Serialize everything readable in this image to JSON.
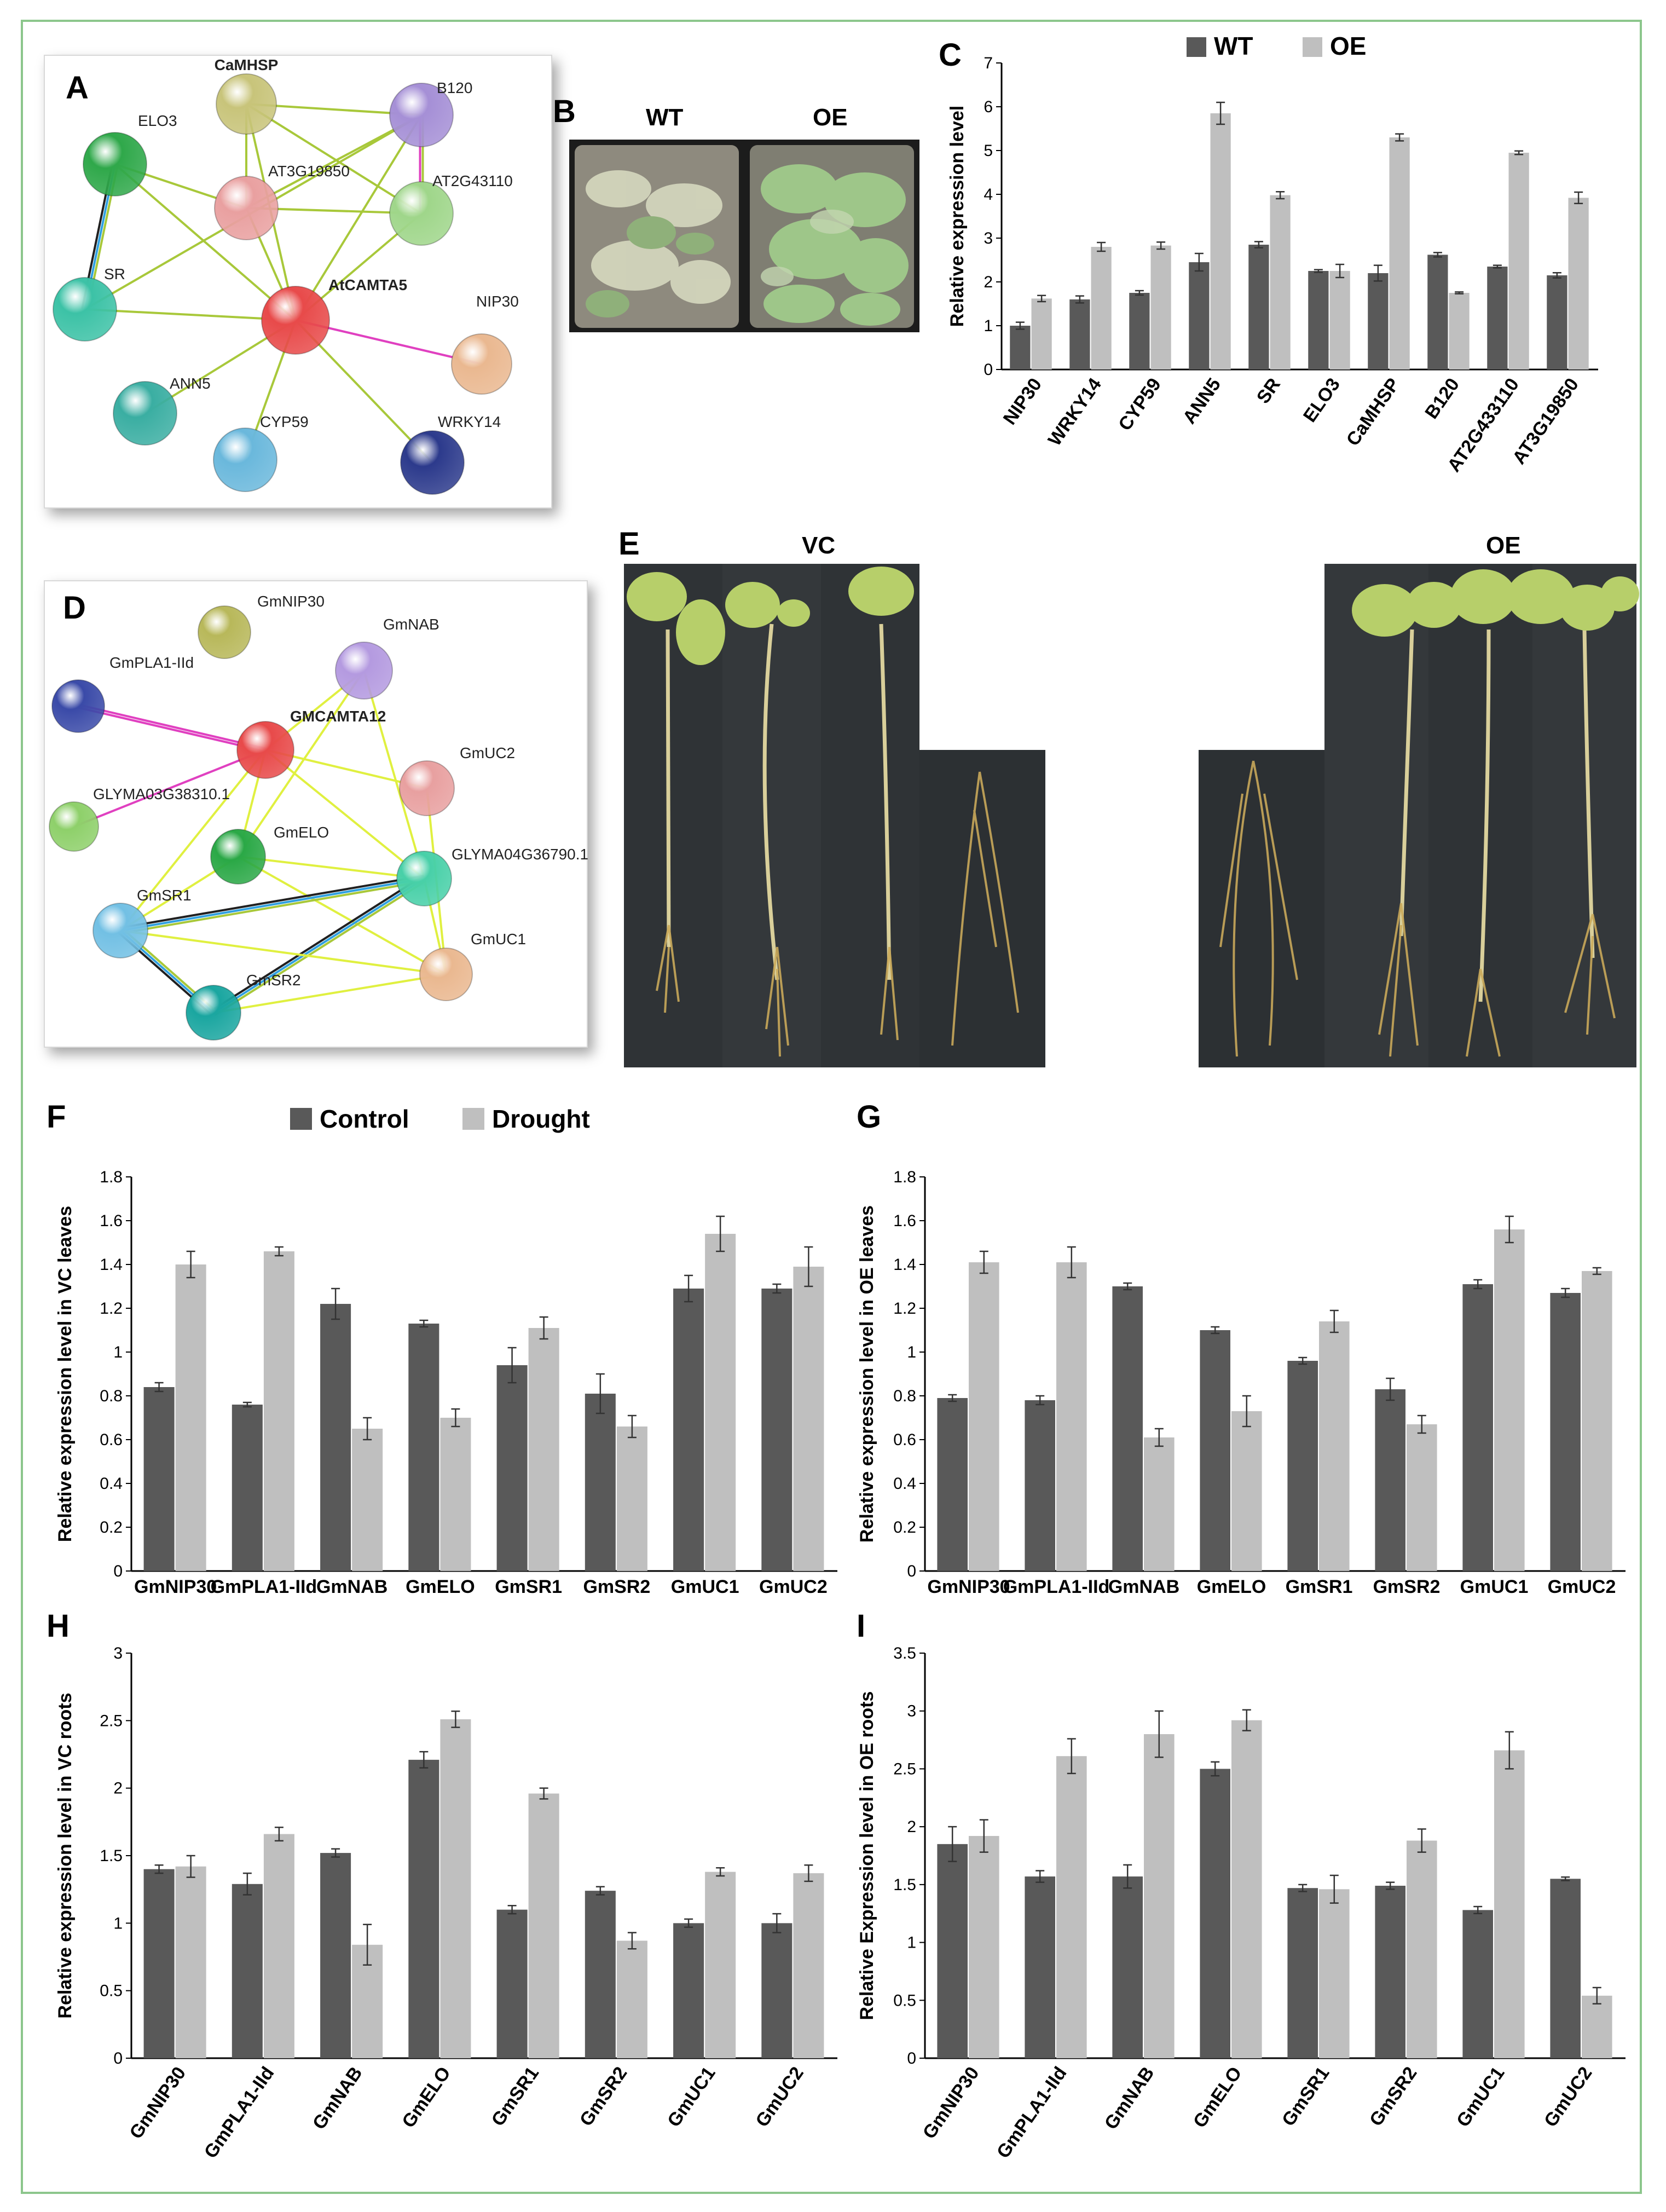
{
  "colors": {
    "dark_bar": "#595959",
    "light_bar": "#bfbfbf",
    "frame": "#8cc68c"
  },
  "panel_labels": {
    "a": "A",
    "b": "B",
    "c": "C",
    "d": "D",
    "e": "E",
    "f": "F",
    "g": "G",
    "h": "H",
    "i": "I"
  },
  "network_a": {
    "nodes": [
      {
        "label": "CaMHSP",
        "color": "#c8c47a",
        "bold": true
      },
      {
        "label": "B120",
        "color": "#a58fd6",
        "bold": false
      },
      {
        "label": "ELO3",
        "color": "#2fa84a",
        "bold": false
      },
      {
        "label": "AT3G19850",
        "color": "#e9a0a0",
        "bold": false
      },
      {
        "label": "AT2G43110",
        "color": "#9fd68a",
        "bold": false
      },
      {
        "label": "SR",
        "color": "#3cc2a6",
        "bold": false
      },
      {
        "label": "AtCAMTA5",
        "color": "#e84a4a",
        "bold": true
      },
      {
        "label": "NIP30",
        "color": "#eab890",
        "bold": false
      },
      {
        "label": "ANN5",
        "color": "#3aaea2",
        "bold": false
      },
      {
        "label": "CYP59",
        "color": "#6ab8dc",
        "bold": false
      },
      {
        "label": "WRKY14",
        "color": "#2c3a8c",
        "bold": false
      }
    ]
  },
  "network_d": {
    "nodes": [
      {
        "label": "GmNIP30",
        "color": "#b8b85a",
        "bold": false
      },
      {
        "label": "GmNAB",
        "color": "#b49ae0",
        "bold": false
      },
      {
        "label": "GmPLA1-IId",
        "color": "#3a4aa8",
        "bold": false
      },
      {
        "label": "GMCAMTA12",
        "color": "#e84a4a",
        "bold": true
      },
      {
        "label": "GmUC2",
        "color": "#e8a0a0",
        "bold": false
      },
      {
        "label": "GLYMA03G38310.1",
        "color": "#8ed06a",
        "bold": false
      },
      {
        "label": "GmELO",
        "color": "#2aa846",
        "bold": false
      },
      {
        "label": "GLYMA04G36790.1",
        "color": "#48d0a8",
        "bold": false
      },
      {
        "label": "GmSR1",
        "color": "#72c0e4",
        "bold": false
      },
      {
        "label": "GmUC1",
        "color": "#eab890",
        "bold": false
      },
      {
        "label": "GmSR2",
        "color": "#1aa6a0",
        "bold": false
      }
    ]
  },
  "photo_b": {
    "left_label": "WT",
    "right_label": "OE"
  },
  "photo_e": {
    "left_label": "VC",
    "right_label": "OE"
  },
  "legend_gm": {
    "control": "Control",
    "drought": "Drought"
  },
  "chart_data": [
    {
      "id": "C",
      "type": "bar",
      "title": "",
      "ylabel": "Relative expression level",
      "categories": [
        "NIP30",
        "WRKY14",
        "CYP59",
        "ANN5",
        "SR",
        "ELO3",
        "CaMHSP",
        "B120",
        "AT2G433110",
        "AT3G19850"
      ],
      "series": [
        {
          "name": "WT",
          "values": [
            1.0,
            1.6,
            1.75,
            2.45,
            2.85,
            2.25,
            2.2,
            2.62,
            2.35,
            2.15
          ],
          "errors": [
            0.08,
            0.08,
            0.05,
            0.2,
            0.07,
            0.03,
            0.18,
            0.05,
            0.03,
            0.06
          ]
        },
        {
          "name": "OE",
          "values": [
            1.62,
            2.8,
            2.83,
            5.85,
            3.98,
            2.25,
            5.3,
            1.75,
            4.95,
            3.92
          ],
          "errors": [
            0.07,
            0.1,
            0.08,
            0.25,
            0.08,
            0.15,
            0.08,
            0.02,
            0.04,
            0.13
          ]
        }
      ],
      "ylim": [
        0,
        7
      ],
      "yticks": [
        0,
        1,
        2,
        3,
        4,
        5,
        6,
        7
      ],
      "ytick_labels": [
        "0",
        "1",
        "2",
        "3",
        "4",
        "5",
        "6",
        "7"
      ],
      "legend": "top"
    },
    {
      "id": "F",
      "type": "bar",
      "ylabel": "Relative expression level in VC leaves",
      "categories": [
        "GmNIP30",
        "GmPLA1-IId",
        "GmNAB",
        "GmELO",
        "GmSR1",
        "GmSR2",
        "GmUC1",
        "GmUC2"
      ],
      "series": [
        {
          "name": "Control",
          "values": [
            0.84,
            0.76,
            1.22,
            1.13,
            0.94,
            0.81,
            1.29,
            1.29
          ],
          "errors": [
            0.02,
            0.01,
            0.07,
            0.015,
            0.08,
            0.09,
            0.06,
            0.02
          ]
        },
        {
          "name": "Drought",
          "values": [
            1.4,
            1.46,
            0.65,
            0.7,
            1.11,
            0.66,
            1.54,
            1.39
          ],
          "errors": [
            0.06,
            0.02,
            0.05,
            0.04,
            0.05,
            0.05,
            0.08,
            0.09
          ]
        }
      ],
      "ylim": [
        0,
        1.8
      ],
      "yticks": [
        0,
        0.2,
        0.4,
        0.6,
        0.8,
        1.0,
        1.2,
        1.4,
        1.6,
        1.8
      ],
      "ytick_labels": [
        "0",
        "0.2",
        "0.4",
        "0.6",
        "0.8",
        "1",
        "1.2",
        "1.4",
        "1.6",
        "1.8"
      ],
      "legend": "top"
    },
    {
      "id": "G",
      "type": "bar",
      "ylabel": "Relative expression level in OE leaves",
      "categories": [
        "GmNIP30",
        "GmPLA1-IId",
        "GmNAB",
        "GmELO",
        "GmSR1",
        "GmSR2",
        "GmUC1",
        "GmUC2"
      ],
      "series": [
        {
          "name": "Control",
          "values": [
            0.79,
            0.78,
            1.3,
            1.1,
            0.96,
            0.83,
            1.31,
            1.27
          ],
          "errors": [
            0.015,
            0.02,
            0.015,
            0.015,
            0.015,
            0.05,
            0.02,
            0.02
          ]
        },
        {
          "name": "Drought",
          "values": [
            1.41,
            1.41,
            0.61,
            0.73,
            1.14,
            0.67,
            1.56,
            1.37
          ],
          "errors": [
            0.05,
            0.07,
            0.04,
            0.07,
            0.05,
            0.04,
            0.06,
            0.015
          ]
        }
      ],
      "ylim": [
        0,
        1.8
      ],
      "yticks": [
        0,
        0.2,
        0.4,
        0.6,
        0.8,
        1.0,
        1.2,
        1.4,
        1.6,
        1.8
      ],
      "ytick_labels": [
        "0",
        "0.2",
        "0.4",
        "0.6",
        "0.8",
        "1",
        "1.2",
        "1.4",
        "1.6",
        "1.8"
      ],
      "legend": "none"
    },
    {
      "id": "H",
      "type": "bar",
      "ylabel": "Relative expression level in VC roots",
      "categories": [
        "GmNIP30",
        "GmPLA1-IId",
        "GmNAB",
        "GmELO",
        "GmSR1",
        "GmSR2",
        "GmUC1",
        "GmUC2"
      ],
      "series": [
        {
          "name": "Control",
          "values": [
            1.4,
            1.29,
            1.52,
            2.21,
            1.1,
            1.24,
            1.0,
            1.0
          ],
          "errors": [
            0.03,
            0.08,
            0.03,
            0.06,
            0.03,
            0.03,
            0.03,
            0.07
          ]
        },
        {
          "name": "Drought",
          "values": [
            1.42,
            1.66,
            0.84,
            2.51,
            1.96,
            0.87,
            1.38,
            1.37
          ],
          "errors": [
            0.08,
            0.05,
            0.15,
            0.06,
            0.04,
            0.06,
            0.03,
            0.06
          ]
        }
      ],
      "ylim": [
        0,
        3
      ],
      "yticks": [
        0,
        0.5,
        1.0,
        1.5,
        2.0,
        2.5,
        3.0
      ],
      "ytick_labels": [
        "0",
        "0.5",
        "1",
        "1.5",
        "2",
        "2.5",
        "3"
      ],
      "legend": "none"
    },
    {
      "id": "I",
      "type": "bar",
      "ylabel": "Relative Expression level in OE roots",
      "categories": [
        "GmNIP30",
        "GmPLA1-IId",
        "GmNAB",
        "GmELO",
        "GmSR1",
        "GmSR2",
        "GmUC1",
        "GmUC2"
      ],
      "series": [
        {
          "name": "Control",
          "values": [
            1.85,
            1.57,
            1.57,
            2.5,
            1.47,
            1.49,
            1.28,
            1.55
          ],
          "errors": [
            0.15,
            0.05,
            0.1,
            0.06,
            0.03,
            0.03,
            0.03,
            0.015
          ]
        },
        {
          "name": "Drought",
          "values": [
            1.92,
            2.61,
            2.8,
            2.92,
            1.46,
            1.88,
            2.66,
            0.54
          ],
          "errors": [
            0.14,
            0.15,
            0.2,
            0.09,
            0.12,
            0.1,
            0.16,
            0.07
          ]
        }
      ],
      "ylim": [
        0,
        3.5
      ],
      "yticks": [
        0,
        0.5,
        1.0,
        1.5,
        2.0,
        2.5,
        3.0,
        3.5
      ],
      "ytick_labels": [
        "0",
        "0.5",
        "1",
        "1.5",
        "2",
        "2.5",
        "3",
        "3.5"
      ],
      "legend": "none"
    }
  ]
}
